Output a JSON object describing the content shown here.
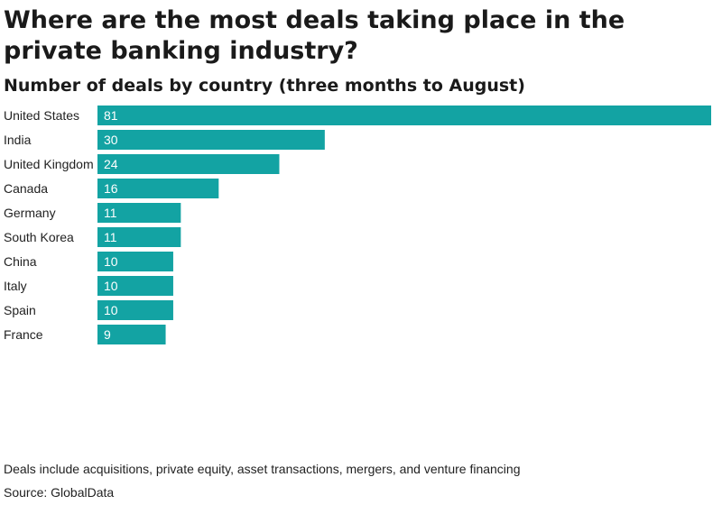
{
  "title": "Where are the most deals taking place in the private banking industry?",
  "subtitle": "Number of deals by country (three months to August)",
  "footnote": "Deals include acquisitions, private equity, asset transactions, mergers, and venture financing",
  "source": "Source: GlobalData",
  "colors": {
    "bar": "#13a3a3",
    "bar_label": "#ffffff",
    "category_label": "#222222"
  },
  "chart_data": {
    "type": "bar",
    "orientation": "horizontal",
    "categories": [
      "United States",
      "India",
      "United Kingdom",
      "Canada",
      "Germany",
      "South Korea",
      "China",
      "Italy",
      "Spain",
      "France"
    ],
    "values": [
      81,
      30,
      24,
      16,
      11,
      11,
      10,
      10,
      10,
      9
    ],
    "xlim": [
      0,
      81
    ],
    "grid": false,
    "legend": "none"
  }
}
